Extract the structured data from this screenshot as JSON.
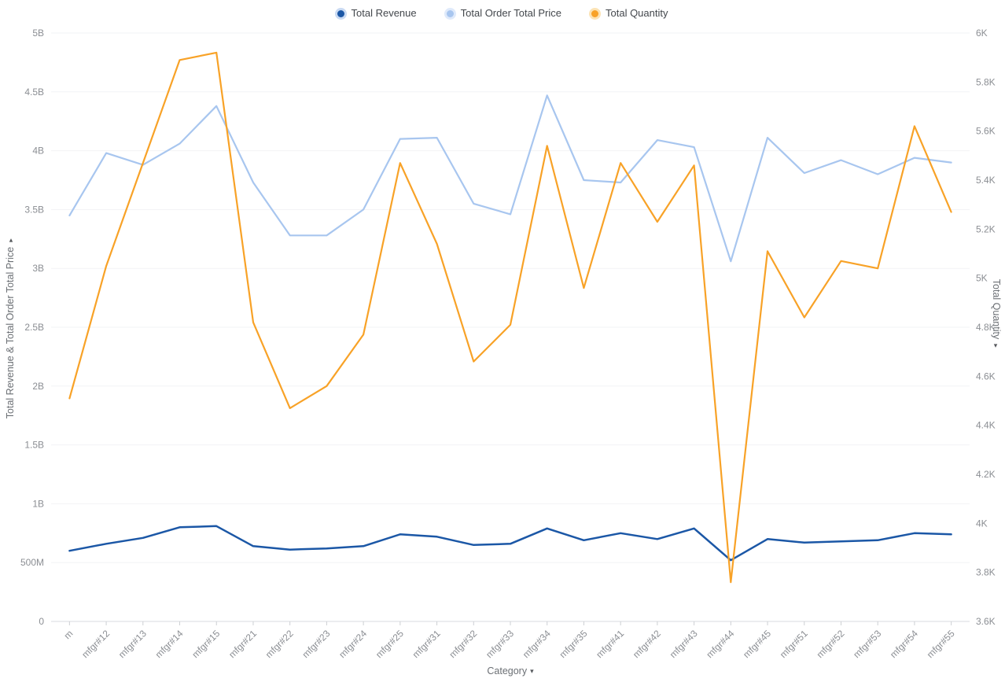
{
  "chart_data": {
    "type": "line",
    "legend_position": "top",
    "grid": "horizontal",
    "categories": [
      "m",
      "mfgr#12",
      "mfgr#13",
      "mfgr#14",
      "mfgr#15",
      "mfgr#21",
      "mfgr#22",
      "mfgr#23",
      "mfgr#24",
      "mfgr#25",
      "mfgr#31",
      "mfgr#32",
      "mfgr#33",
      "mfgr#34",
      "mfgr#35",
      "mfgr#41",
      "mfgr#42",
      "mfgr#43",
      "mfgr#44",
      "mfgr#45",
      "mfgr#51",
      "mfgr#52",
      "mfgr#53",
      "mfgr#54",
      "mfgr#55"
    ],
    "series": [
      {
        "name": "Total Revenue",
        "axis": "left",
        "unit": "B",
        "color": "#1b57a6",
        "ring": "#c9daf3",
        "values": [
          0.6,
          0.66,
          0.71,
          0.8,
          0.81,
          0.64,
          0.61,
          0.62,
          0.64,
          0.74,
          0.72,
          0.65,
          0.66,
          0.79,
          0.69,
          0.75,
          0.7,
          0.79,
          0.52,
          0.7,
          0.67,
          0.68,
          0.69,
          0.75,
          0.74
        ]
      },
      {
        "name": "Total Order Total Price",
        "axis": "left",
        "unit": "B",
        "color": "#a8c6ef",
        "ring": "#dfeafb",
        "values": [
          3.45,
          3.98,
          3.88,
          4.06,
          4.38,
          3.73,
          3.28,
          3.28,
          3.5,
          4.1,
          4.11,
          3.55,
          3.46,
          4.47,
          3.75,
          3.73,
          4.09,
          4.03,
          3.06,
          4.11,
          3.81,
          3.92,
          3.8,
          3.94,
          3.9
        ]
      },
      {
        "name": "Total Quantity",
        "axis": "right",
        "unit": "K",
        "color": "#f8a227",
        "ring": "#fce3b4",
        "values": [
          4.51,
          5.05,
          5.47,
          5.89,
          5.92,
          4.82,
          4.47,
          4.56,
          4.77,
          5.47,
          5.14,
          4.66,
          4.81,
          5.54,
          4.96,
          5.47,
          5.23,
          5.46,
          3.76,
          5.11,
          4.84,
          5.07,
          5.04,
          5.62,
          5.27
        ]
      }
    ],
    "axes": {
      "x": {
        "label": "Category",
        "caret": "▾"
      },
      "left": {
        "label": "Total Revenue & Total Order Total Price",
        "caret": "▾",
        "range": [
          0,
          5
        ],
        "ticks": [
          {
            "v": 0,
            "label": "0"
          },
          {
            "v": 0.5,
            "label": "500M"
          },
          {
            "v": 1,
            "label": "1B"
          },
          {
            "v": 1.5,
            "label": "1.5B"
          },
          {
            "v": 2,
            "label": "2B"
          },
          {
            "v": 2.5,
            "label": "2.5B"
          },
          {
            "v": 3,
            "label": "3B"
          },
          {
            "v": 3.5,
            "label": "3.5B"
          },
          {
            "v": 4,
            "label": "4B"
          },
          {
            "v": 4.5,
            "label": "4.5B"
          },
          {
            "v": 5,
            "label": "5B"
          }
        ]
      },
      "right": {
        "label": "Total Quantity",
        "caret": "▾",
        "range": [
          3.6,
          6
        ],
        "ticks": [
          {
            "v": 3.6,
            "label": "3.6K"
          },
          {
            "v": 3.8,
            "label": "3.8K"
          },
          {
            "v": 4,
            "label": "4K"
          },
          {
            "v": 4.2,
            "label": "4.2K"
          },
          {
            "v": 4.4,
            "label": "4.4K"
          },
          {
            "v": 4.6,
            "label": "4.6K"
          },
          {
            "v": 4.8,
            "label": "4.8K"
          },
          {
            "v": 5,
            "label": "5K"
          },
          {
            "v": 5.2,
            "label": "5.2K"
          },
          {
            "v": 5.4,
            "label": "5.4K"
          },
          {
            "v": 5.6,
            "label": "5.6K"
          },
          {
            "v": 5.8,
            "label": "5.8K"
          },
          {
            "v": 6,
            "label": "6K"
          }
        ]
      }
    },
    "style": {
      "gridline_color": "#f2f3f5",
      "baseline_color": "#d8dbdf",
      "tick_mark_color": "#cdd0d4",
      "tick_label_color": "#8b8e93"
    }
  }
}
